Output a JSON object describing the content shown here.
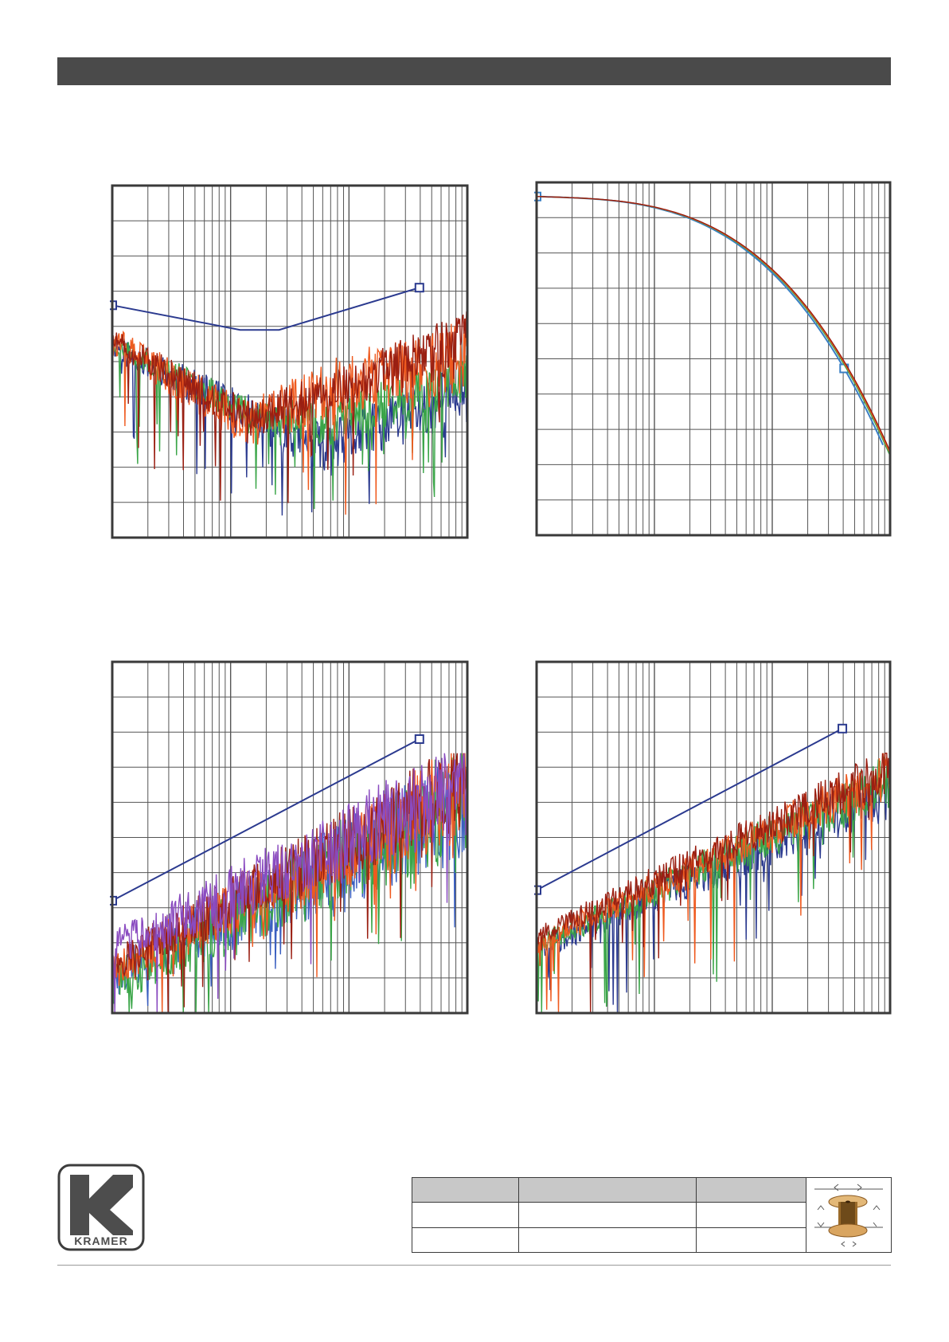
{
  "chart_data": [
    {
      "type": "line",
      "x_scale": "log",
      "y_range": [
        0,
        10
      ],
      "grid": true,
      "series": [
        {
          "role": "limit",
          "color": "#2b3a8f",
          "x": [
            0.0,
            0.36,
            0.47,
            0.865
          ],
          "y": [
            6.6,
            5.9,
            5.9,
            7.1
          ],
          "markers": true
        },
        {
          "color": "#2b3a8f",
          "noisy": true,
          "seed": 11,
          "trend": [
            [
              0,
              5.5
            ],
            [
              0.38,
              3.5
            ],
            [
              0.6,
              2.5
            ],
            [
              1,
              4.2
            ]
          ],
          "amp": 0.6
        },
        {
          "color": "#3aa548",
          "noisy": true,
          "seed": 23,
          "trend": [
            [
              0,
              5.5
            ],
            [
              0.38,
              3.6
            ],
            [
              0.6,
              3.2
            ],
            [
              1,
              4.6
            ]
          ],
          "amp": 0.5
        },
        {
          "color": "#ef5a1f",
          "noisy": true,
          "seed": 37,
          "trend": [
            [
              0,
              5.6
            ],
            [
              0.38,
              3.2
            ],
            [
              0.6,
              4.2
            ],
            [
              1,
              5.2
            ]
          ],
          "amp": 0.7
        },
        {
          "color": "#9a1f12",
          "noisy": true,
          "seed": 51,
          "trend": [
            [
              0,
              5.6
            ],
            [
              0.38,
              3.4
            ],
            [
              0.6,
              4.0
            ],
            [
              1,
              5.6
            ]
          ],
          "amp": 0.55
        }
      ]
    },
    {
      "type": "line",
      "x_scale": "log",
      "y_range": [
        0,
        10
      ],
      "grid": true,
      "series": [
        {
          "role": "limit",
          "color": "#3a7fc4",
          "curve": "attenuation",
          "offset": 0.0,
          "end": 0.98,
          "marker_at": [
            0.0,
            0.87
          ]
        },
        {
          "color": "#3aa548",
          "curve": "attenuation",
          "offset": 0.15,
          "end": 1.0
        },
        {
          "color": "#ef5a1f",
          "curve": "attenuation",
          "offset": 0.22,
          "end": 1.0
        },
        {
          "color": "#9a1f12",
          "curve": "attenuation",
          "offset": 0.28,
          "end": 1.0
        }
      ]
    },
    {
      "type": "line",
      "x_scale": "log",
      "y_range": [
        0,
        10
      ],
      "grid": true,
      "series": [
        {
          "role": "limit",
          "color": "#2b3a8f",
          "x": [
            0.0,
            0.865
          ],
          "y": [
            3.2,
            7.8
          ],
          "markers": true
        },
        {
          "color": "#3a5fc0",
          "noisy": true,
          "seed": 61,
          "trend": [
            [
              0,
              1.0
            ],
            [
              1,
              6.0
            ]
          ],
          "amp": 1.0
        },
        {
          "color": "#3aa548",
          "noisy": true,
          "seed": 73,
          "trend": [
            [
              0,
              0.8
            ],
            [
              1,
              6.2
            ]
          ],
          "amp": 1.0
        },
        {
          "color": "#ef5a1f",
          "noisy": true,
          "seed": 87,
          "trend": [
            [
              0,
              1.2
            ],
            [
              1,
              6.4
            ]
          ],
          "amp": 0.9
        },
        {
          "color": "#9a1f12",
          "noisy": true,
          "seed": 97,
          "trend": [
            [
              0,
              1.4
            ],
            [
              1,
              6.6
            ]
          ],
          "amp": 0.8
        },
        {
          "color": "#8a4bc0",
          "noisy": true,
          "seed": 103,
          "trend": [
            [
              0,
              1.8
            ],
            [
              1,
              6.5
            ]
          ],
          "amp": 0.9
        }
      ]
    },
    {
      "type": "line",
      "x_scale": "log",
      "y_range": [
        0,
        10
      ],
      "grid": true,
      "series": [
        {
          "role": "limit",
          "color": "#2b3a8f",
          "x": [
            0.0,
            0.865
          ],
          "y": [
            3.5,
            8.1
          ],
          "markers": true
        },
        {
          "color": "#2b3a8f",
          "noisy": true,
          "seed": 131,
          "trend": [
            [
              0,
              1.8
            ],
            [
              1,
              6.3
            ]
          ],
          "amp": 0.5
        },
        {
          "color": "#3aa548",
          "noisy": true,
          "seed": 149,
          "trend": [
            [
              0,
              1.9
            ],
            [
              1,
              6.6
            ]
          ],
          "amp": 0.5
        },
        {
          "color": "#ef5a1f",
          "noisy": true,
          "seed": 157,
          "trend": [
            [
              0,
              2.0
            ],
            [
              1,
              6.8
            ]
          ],
          "amp": 0.45
        },
        {
          "color": "#9a1f12",
          "noisy": true,
          "seed": 163,
          "trend": [
            [
              0,
              2.2
            ],
            [
              1,
              6.9
            ]
          ],
          "amp": 0.45
        }
      ]
    }
  ],
  "logo": {
    "text": "KRAMER"
  }
}
